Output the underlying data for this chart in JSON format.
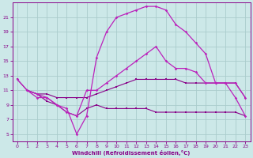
{
  "xlabel": "Windchill (Refroidissement éolien,°C)",
  "bg_color": "#cce8e8",
  "grid_color": "#aacccc",
  "line_color": "#880088",
  "line_color2": "#bb22bb",
  "xlim": [
    -0.5,
    23.5
  ],
  "ylim": [
    4,
    23
  ],
  "xticks": [
    0,
    1,
    2,
    3,
    4,
    5,
    6,
    7,
    8,
    9,
    10,
    11,
    12,
    13,
    14,
    15,
    16,
    17,
    18,
    19,
    20,
    21,
    22,
    23
  ],
  "yticks": [
    5,
    7,
    9,
    11,
    13,
    15,
    17,
    19,
    21
  ],
  "curve_big_arch_x": [
    1,
    2,
    3,
    4,
    5,
    6,
    7,
    8,
    9,
    10,
    11,
    12,
    13,
    14,
    15,
    16,
    17,
    18,
    19,
    20,
    21,
    22,
    23
  ],
  "curve_big_arch_y": [
    11,
    10.5,
    10,
    9,
    8.5,
    5,
    7.5,
    15.5,
    19,
    21,
    21.5,
    22,
    22.5,
    22.5,
    22,
    20,
    19,
    17.5,
    16,
    12,
    12,
    10,
    7.5
  ],
  "curve_mid_upper_x": [
    0,
    1,
    2,
    3,
    4,
    5,
    6,
    7,
    8,
    9,
    10,
    11,
    12,
    13,
    14,
    15,
    16,
    17,
    18,
    19,
    20,
    21,
    22,
    23
  ],
  "curve_mid_upper_y": [
    12.5,
    11,
    10,
    10,
    9,
    8,
    7.5,
    11,
    11,
    12,
    13,
    14,
    15,
    16,
    17,
    15,
    14,
    14,
    13.5,
    12,
    12,
    12,
    12,
    10
  ],
  "curve_mid_lower_x": [
    0,
    1,
    2,
    3,
    4,
    5,
    6,
    7,
    8,
    9,
    10,
    11,
    12,
    13,
    14,
    15,
    16,
    17,
    18,
    19,
    20,
    21,
    22,
    23
  ],
  "curve_mid_lower_y": [
    12.5,
    11,
    10.5,
    10.5,
    10,
    10,
    10,
    10,
    10.5,
    11,
    11.5,
    12,
    12.5,
    12.5,
    12.5,
    12.5,
    12.5,
    12,
    12,
    12,
    12,
    12,
    12,
    10
  ],
  "curve_bottom_x": [
    1,
    2,
    3,
    4,
    5,
    6,
    7,
    8,
    9,
    10,
    11,
    12,
    13,
    14,
    15,
    16,
    17,
    18,
    19,
    20,
    21,
    22,
    23
  ],
  "curve_bottom_y": [
    11,
    10.5,
    9.5,
    9,
    8,
    7.5,
    8.5,
    9,
    8.5,
    8.5,
    8.5,
    8.5,
    8.5,
    8,
    8,
    8,
    8,
    8,
    8,
    8,
    8,
    8,
    7.5
  ]
}
